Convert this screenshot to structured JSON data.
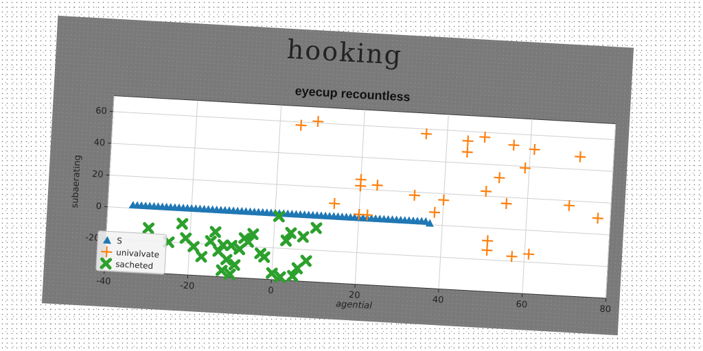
{
  "figure": {
    "suptitle": "hooking"
  },
  "chart_data": {
    "type": "scatter",
    "title": "eyecup recountless",
    "xlabel": "agential",
    "ylabel": "subaerating",
    "xlim": [
      -40,
      80
    ],
    "ylim": [
      -40,
      70
    ],
    "xticks": [
      -40,
      -20,
      0,
      20,
      40,
      60,
      80
    ],
    "yticks": [
      -20,
      0,
      20,
      40,
      60
    ],
    "grid": true,
    "legend_position": "lower-left",
    "series": [
      {
        "name": "S",
        "color": "#1f77b4",
        "marker": "triangle",
        "points": [
          [
            -34,
            2
          ],
          [
            -33,
            2
          ],
          [
            -32,
            2
          ],
          [
            -31,
            2
          ],
          [
            -30,
            2
          ],
          [
            -29,
            2
          ],
          [
            -28,
            2
          ],
          [
            -27,
            2
          ],
          [
            -26,
            2
          ],
          [
            -25,
            2
          ],
          [
            -24,
            2
          ],
          [
            -23,
            2
          ],
          [
            -22,
            2
          ],
          [
            -21,
            2
          ],
          [
            -20,
            2
          ],
          [
            -19,
            2
          ],
          [
            -18,
            2
          ],
          [
            -17,
            2
          ],
          [
            -16,
            2
          ],
          [
            -15,
            2
          ],
          [
            -14,
            2
          ],
          [
            -13,
            2
          ],
          [
            -12,
            2
          ],
          [
            -11,
            2
          ],
          [
            -10,
            2
          ],
          [
            -9,
            2
          ],
          [
            -8,
            2
          ],
          [
            -7,
            2
          ],
          [
            -6,
            2
          ],
          [
            -5,
            2
          ],
          [
            -4,
            2
          ],
          [
            -3,
            2
          ],
          [
            -2,
            2
          ],
          [
            -1,
            2
          ],
          [
            0,
            2
          ],
          [
            1,
            2
          ],
          [
            2,
            2
          ],
          [
            3,
            2
          ],
          [
            4,
            2
          ],
          [
            5,
            2
          ],
          [
            6,
            2
          ],
          [
            7,
            2
          ],
          [
            8,
            2
          ],
          [
            9,
            2
          ],
          [
            10,
            2
          ],
          [
            11,
            2
          ],
          [
            12,
            2
          ],
          [
            13,
            2
          ],
          [
            14,
            2
          ],
          [
            15,
            2
          ],
          [
            16,
            2
          ],
          [
            17,
            2
          ],
          [
            18,
            2
          ],
          [
            19,
            2
          ],
          [
            20,
            2
          ],
          [
            21,
            2
          ],
          [
            22,
            2
          ],
          [
            23,
            2
          ],
          [
            24,
            2
          ],
          [
            25,
            2
          ],
          [
            26,
            2
          ],
          [
            27,
            2
          ],
          [
            28,
            2
          ],
          [
            29,
            2
          ],
          [
            30,
            2
          ],
          [
            31,
            2
          ],
          [
            32,
            2
          ],
          [
            33,
            2
          ],
          [
            34,
            2
          ],
          [
            35,
            2
          ],
          [
            36,
            2
          ],
          [
            37,
            1
          ]
        ]
      },
      {
        "name": "univalvate",
        "color": "#ff7f0e",
        "marker": "plus",
        "points": [
          [
            5,
            58
          ],
          [
            9,
            61
          ],
          [
            35,
            57
          ],
          [
            45,
            54
          ],
          [
            45,
            47
          ],
          [
            49,
            57
          ],
          [
            56,
            53
          ],
          [
            61,
            51
          ],
          [
            72,
            48
          ],
          [
            59,
            39
          ],
          [
            53,
            32
          ],
          [
            20,
            26
          ],
          [
            20,
            22
          ],
          [
            24,
            23
          ],
          [
            50,
            23
          ],
          [
            33,
            18
          ],
          [
            40,
            16
          ],
          [
            55,
            16
          ],
          [
            70,
            17
          ],
          [
            14,
            10
          ],
          [
            38,
            8
          ],
          [
            20,
            4
          ],
          [
            22,
            4
          ],
          [
            77,
            10
          ],
          [
            51,
            -8
          ],
          [
            51,
            -14
          ],
          [
            57,
            -17
          ],
          [
            61,
            -15
          ]
        ]
      },
      {
        "name": "sacheted",
        "color": "#2ca02c",
        "marker": "x",
        "points": [
          [
            -30,
            -12
          ],
          [
            -25,
            -20
          ],
          [
            -22,
            -8
          ],
          [
            -21,
            -17
          ],
          [
            -19,
            -22
          ],
          [
            -17,
            -28
          ],
          [
            -15,
            -18
          ],
          [
            -14,
            -12
          ],
          [
            -13,
            -24
          ],
          [
            -12,
            -20
          ],
          [
            -11,
            -29
          ],
          [
            -10,
            -20
          ],
          [
            -9,
            -32
          ],
          [
            -8,
            -22
          ],
          [
            -7,
            -15
          ],
          [
            -6,
            -17
          ],
          [
            -5,
            -12
          ],
          [
            -3,
            -24
          ],
          [
            -2,
            -26
          ],
          [
            0,
            -36
          ],
          [
            1,
            0
          ],
          [
            2,
            -38
          ],
          [
            3,
            -15
          ],
          [
            4,
            -10
          ],
          [
            5,
            -37
          ],
          [
            6,
            -32
          ],
          [
            7,
            -12
          ],
          [
            8,
            -27
          ],
          [
            10,
            -6
          ],
          [
            -12,
            -36
          ],
          [
            -10,
            -38
          ]
        ]
      }
    ]
  }
}
